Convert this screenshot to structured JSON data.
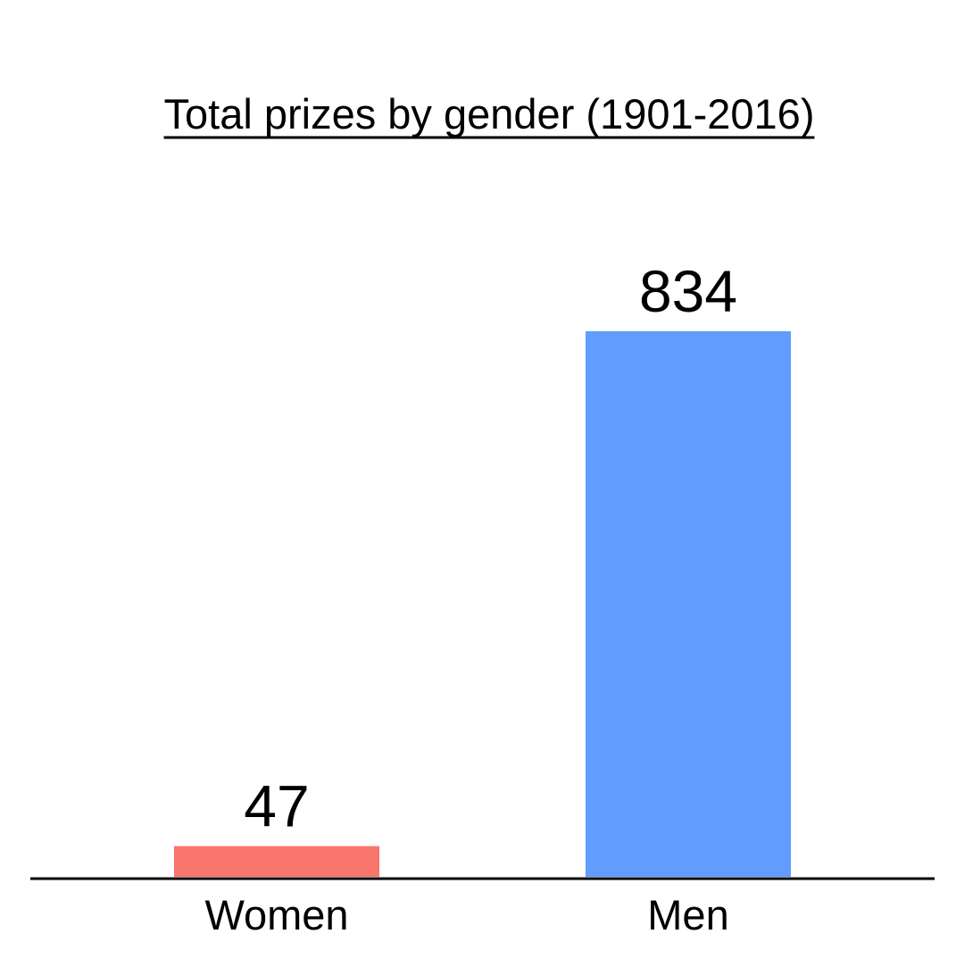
{
  "chart_data": {
    "type": "bar",
    "title": "Total prizes by gender (1901-2016)",
    "title_underlined": true,
    "categories": [
      "Women",
      "Men"
    ],
    "values": [
      47,
      834
    ],
    "colors": [
      "#F8766D",
      "#619CFF"
    ],
    "xlabel": "",
    "ylabel": "",
    "ylim": [
      0,
      834
    ],
    "y_axis_visible": false,
    "grid": false,
    "legend": "none",
    "data_labels": true
  }
}
